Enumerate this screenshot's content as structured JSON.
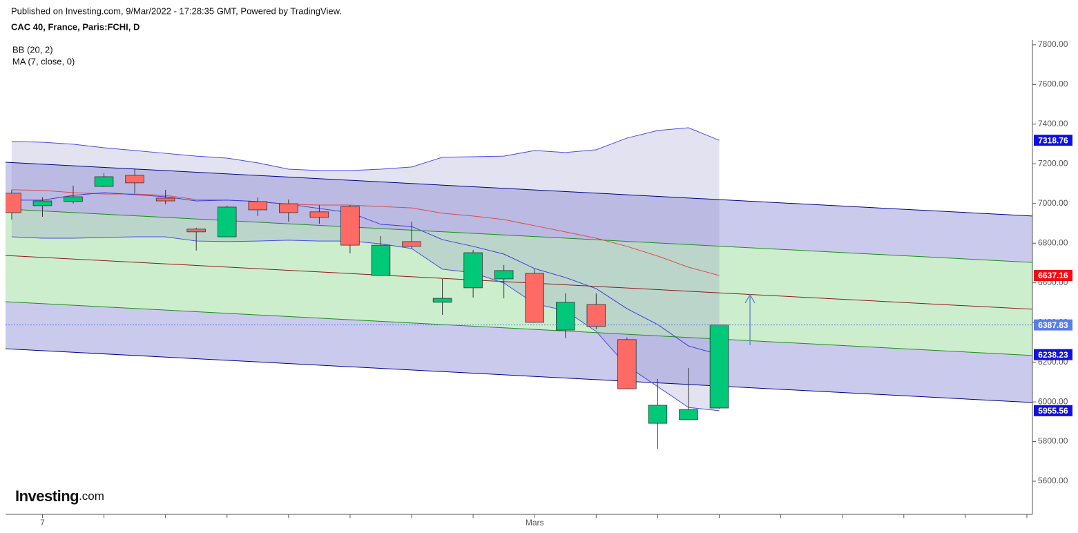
{
  "chart_data": {
    "type": "candlestick",
    "source": "Published on Investing.com, 9/Mar/2022 - 17:28:35 GMT, Powered by TradingView.",
    "title": "CAC 40, France, Paris:FCHI, D",
    "indicators": [
      "BB (20, 2)",
      "MA (7, close, 0)"
    ],
    "logo": "Investing",
    "logo_suffix": ".com",
    "x": [
      0,
      1,
      2,
      3,
      4,
      5,
      6,
      7,
      8,
      9,
      10,
      11,
      12,
      13,
      14,
      15,
      16,
      17,
      18,
      19,
      20,
      21,
      22,
      23
    ],
    "xlim": [
      -0.2,
      33.18
    ],
    "xticks": [
      {
        "value": 1,
        "label": "7"
      },
      {
        "value": 17,
        "label": "Mars"
      }
    ],
    "minor_xticks": [
      3,
      5,
      7,
      9,
      11,
      13,
      15,
      19,
      21,
      23,
      25,
      27,
      29,
      31,
      33
    ],
    "open": [
      7052,
      6989,
      7010,
      7086,
      7142,
      7027,
      6871,
      6832,
      7010,
      6999,
      6958,
      6985,
      6637,
      6808,
      6502,
      6575,
      6620,
      6648,
      6362,
      6491,
      6314,
      5892,
      5910,
      5969
    ],
    "high": [
      7069,
      7031,
      7090,
      7153,
      7177,
      7069,
      6878,
      6989,
      7031,
      7020,
      6992,
      6992,
      6836,
      6909,
      6620,
      6766,
      6690,
      6669,
      6547,
      6547,
      6324,
      6115,
      6171,
      6390
    ],
    "low": [
      6919,
      6933,
      7000,
      7083,
      7052,
      6996,
      6763,
      6830,
      6937,
      6909,
      6898,
      6749,
      6635,
      6773,
      6439,
      6526,
      6522,
      6399,
      6321,
      6366,
      6064,
      5764,
      5908,
      5966
    ],
    "close": [
      6954,
      7013,
      7034,
      7135,
      7104,
      7013,
      6857,
      6982,
      6968,
      6954,
      6930,
      6790,
      6790,
      6784,
      6522,
      6752,
      6662,
      6401,
      6502,
      6380,
      6066,
      5983,
      5962,
      6387.83
    ],
    "up_color": "#00c879",
    "down_color": "#ff6a64",
    "bollinger": {
      "upper": [
        7313,
        7309,
        7299,
        7281,
        7267,
        7253,
        7239,
        7229,
        7205,
        7173,
        7166,
        7166,
        7173,
        7184,
        7233,
        7236,
        7239,
        7267,
        7257,
        7271,
        7330,
        7368,
        7382,
        7318.76
      ],
      "middle": [
        7069,
        7066,
        7055,
        7048,
        7048,
        7041,
        7020,
        7017,
        7010,
        6996,
        6992,
        6992,
        6985,
        6978,
        6951,
        6937,
        6919,
        6888,
        6857,
        6825,
        6784,
        6735,
        6679,
        6637.16
      ],
      "lower": [
        6832,
        6825,
        6825,
        6829,
        6832,
        6832,
        6811,
        6808,
        6811,
        6815,
        6811,
        6811,
        6797,
        6773,
        6669,
        6651,
        6599,
        6495,
        6460,
        6355,
        6181,
        6077,
        5972,
        5955.56
      ],
      "band_color": "#4a4ae8",
      "middle_color": "#e04848",
      "fill": "rgba(140,140,200,0.25)"
    },
    "ma": {
      "values": [
        7017,
        7017,
        7041,
        7055,
        7045,
        7034,
        7013,
        7017,
        7010,
        6996,
        6975,
        6954,
        6895,
        6884,
        6818,
        6784,
        6745,
        6672,
        6627,
        6571,
        6470,
        6390,
        6282,
        6238.23
      ],
      "color": "#3a3ae0"
    },
    "channel": {
      "x": [
        -0.2,
        33.18
      ],
      "lines": [
        {
          "values": [
            7208,
            6937
          ],
          "color": "#00008b"
        },
        {
          "values": [
            6972,
            6703
          ],
          "color": "#1e8c1e"
        },
        {
          "values": [
            6738,
            6467
          ],
          "color": "#8b1a1a"
        },
        {
          "values": [
            6505,
            6234
          ],
          "color": "#1e8c1e"
        },
        {
          "values": [
            6268,
            5997
          ],
          "color": "#00008b"
        }
      ],
      "outer_fill": "rgba(90,90,200,0.32)",
      "inner_fill": "rgba(120,210,120,0.38)"
    },
    "arrow": {
      "x": 24,
      "from": 6286,
      "to": 6540,
      "color": "#6a8ad0"
    },
    "price_labels": [
      {
        "value": 7318.76,
        "label": "7318.76",
        "color": "#1010e0"
      },
      {
        "value": 6637.16,
        "label": "6637.16",
        "color": "#f01010"
      },
      {
        "value": 6387.83,
        "label": "6387.83",
        "color": "#5a7ee6"
      },
      {
        "value": 6238.23,
        "label": "6238.23",
        "color": "#1010e0"
      },
      {
        "value": 5955.56,
        "label": "5955.56",
        "color": "#1010e0"
      }
    ],
    "ylim": [
      5433,
      7824
    ],
    "yticks": [
      {
        "value": 5600,
        "label": "5600.00"
      },
      {
        "value": 5800,
        "label": "5800.00"
      },
      {
        "value": 6000,
        "label": "6000.00"
      },
      {
        "value": 6200,
        "label": "6200.00"
      },
      {
        "value": 6400,
        "label": "6400.00"
      },
      {
        "value": 6600,
        "label": "6600.00"
      },
      {
        "value": 6800,
        "label": "6800.00"
      },
      {
        "value": 7000,
        "label": "7000.00"
      },
      {
        "value": 7200,
        "label": "7200.00"
      },
      {
        "value": 7400,
        "label": "7400.00"
      },
      {
        "value": 7600,
        "label": "7600.00"
      },
      {
        "value": 7800,
        "label": "7800.00"
      }
    ]
  }
}
